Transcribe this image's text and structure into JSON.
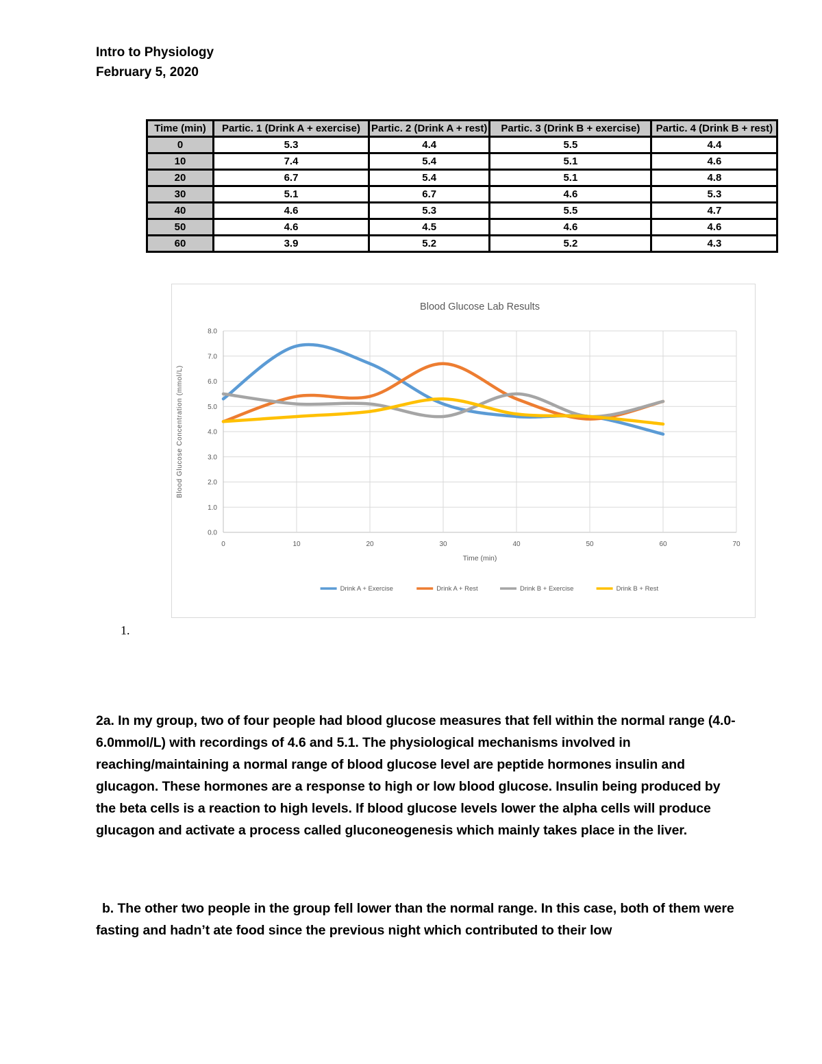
{
  "page": {
    "header_line1": "Intro to Physiology",
    "header_line2": "February 5, 2020",
    "list_marker": "1.",
    "paragraph_2a": "2a. In my group, two of four people had blood glucose measures that fell within the normal range (4.0-6.0mmol/L) with recordings of 4.6 and 5.1. The physiological mechanisms involved in reaching/maintaining a normal range of blood glucose level are peptide hormones insulin and glucagon. These hormones are a response to high or low blood glucose. Insulin being produced by the beta cells is a reaction to high levels. If blood glucose levels lower the alpha cells will produce glucagon and activate a process called gluconeogenesis which mainly takes place in the liver.",
    "paragraph_b": "b. The other two people in the group fell lower than the normal range. In this case, both of them were fasting and hadn’t ate food since the previous night which contributed to their low"
  },
  "table": {
    "columns": [
      "Time (min)",
      "Partic. 1 (Drink A + exercise)",
      "Partic. 2 (Drink A + rest)",
      "Partic. 3 (Drink B + exercise)",
      "Partic. 4 (Drink B + rest)"
    ],
    "rows": [
      [
        "0",
        "5.3",
        "4.4",
        "5.5",
        "4.4"
      ],
      [
        "10",
        "7.4",
        "5.4",
        "5.1",
        "4.6"
      ],
      [
        "20",
        "6.7",
        "5.4",
        "5.1",
        "4.8"
      ],
      [
        "30",
        "5.1",
        "6.7",
        "4.6",
        "5.3"
      ],
      [
        "40",
        "4.6",
        "5.3",
        "5.5",
        "4.7"
      ],
      [
        "50",
        "4.6",
        "4.5",
        "4.6",
        "4.6"
      ],
      [
        "60",
        "3.9",
        "5.2",
        "5.2",
        "4.3"
      ]
    ]
  },
  "chart_data": {
    "type": "line",
    "title": "Blood Glucose Lab Results",
    "xlabel": "Time (min)",
    "ylabel": "Blood Glucose Concentration (mmol/L)",
    "x": [
      0,
      10,
      20,
      30,
      40,
      50,
      60
    ],
    "xlim": [
      0,
      70
    ],
    "ylim": [
      0,
      8
    ],
    "x_ticks": [
      0,
      10,
      20,
      30,
      40,
      50,
      60,
      70
    ],
    "y_ticks": [
      "0.0",
      "1.0",
      "2.0",
      "3.0",
      "4.0",
      "5.0",
      "6.0",
      "7.0",
      "8.0"
    ],
    "grid": true,
    "smooth": true,
    "legend_position": "bottom",
    "text_color": "#595959",
    "gridline_color": "#d9d9d9",
    "axis_color": "#bfbfbf",
    "series": [
      {
        "name": "Drink A + Exercise",
        "color": "#5B9BD5",
        "values": [
          5.3,
          7.4,
          6.7,
          5.1,
          4.6,
          4.6,
          3.9
        ]
      },
      {
        "name": "Drink A + Rest",
        "color": "#ED7D31",
        "values": [
          4.4,
          5.4,
          5.4,
          6.7,
          5.3,
          4.5,
          5.2
        ]
      },
      {
        "name": "Drink B + Exercise",
        "color": "#A5A5A5",
        "values": [
          5.5,
          5.1,
          5.1,
          4.6,
          5.5,
          4.6,
          5.2
        ]
      },
      {
        "name": "Drink B + Rest",
        "color": "#FFC000",
        "values": [
          4.4,
          4.6,
          4.8,
          5.3,
          4.7,
          4.6,
          4.3
        ]
      }
    ]
  }
}
